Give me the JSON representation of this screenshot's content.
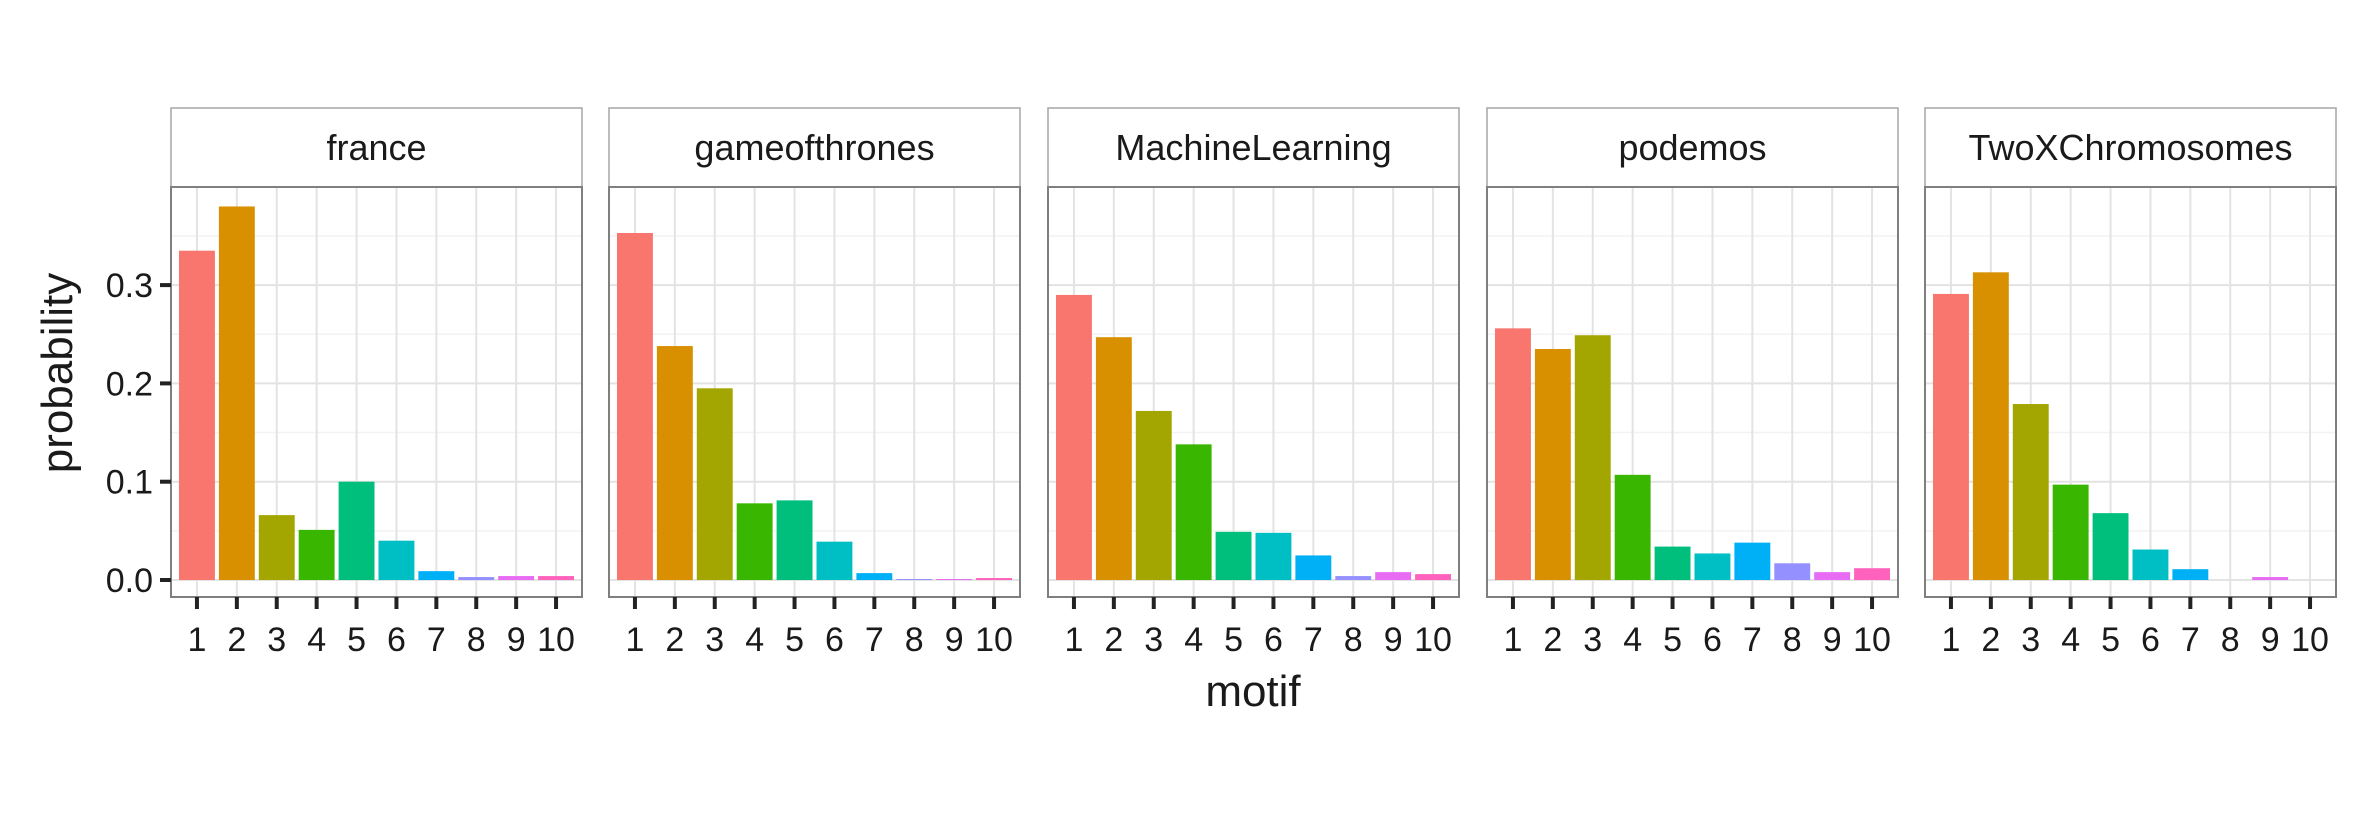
{
  "chart_data": {
    "type": "bar",
    "xlabel": "motif",
    "ylabel": "probability",
    "ylim": [
      -0.02,
      0.4
    ],
    "yticks": [
      {
        "value": 0.0,
        "label": "0.0"
      },
      {
        "value": 0.1,
        "label": "0.1"
      },
      {
        "value": 0.2,
        "label": "0.2"
      },
      {
        "value": 0.3,
        "label": "0.3"
      }
    ],
    "categories": [
      "1",
      "2",
      "3",
      "4",
      "5",
      "6",
      "7",
      "8",
      "9",
      "10"
    ],
    "colors": [
      "#F8766D",
      "#D89000",
      "#A3A500",
      "#39B600",
      "#00BF7D",
      "#00BFC4",
      "#00B0F6",
      "#9590FF",
      "#E76BF3",
      "#FF62BC"
    ],
    "grid": true,
    "legend": "none",
    "facets": [
      {
        "name": "france",
        "values": [
          0.335,
          0.38,
          0.066,
          0.051,
          0.1,
          0.04,
          0.009,
          0.003,
          0.004,
          0.004
        ]
      },
      {
        "name": "gameofthrones",
        "values": [
          0.353,
          0.238,
          0.195,
          0.078,
          0.081,
          0.039,
          0.007,
          0.001,
          0.001,
          0.002
        ]
      },
      {
        "name": "MachineLearning",
        "values": [
          0.29,
          0.247,
          0.172,
          0.138,
          0.049,
          0.048,
          0.025,
          0.004,
          0.008,
          0.006
        ]
      },
      {
        "name": "podemos",
        "values": [
          0.256,
          0.235,
          0.249,
          0.107,
          0.034,
          0.027,
          0.038,
          0.017,
          0.008,
          0.012
        ]
      },
      {
        "name": "TwoXChromosomes",
        "values": [
          0.291,
          0.313,
          0.179,
          0.097,
          0.068,
          0.031,
          0.011,
          0.0,
          0.003,
          0.0
        ]
      }
    ]
  }
}
